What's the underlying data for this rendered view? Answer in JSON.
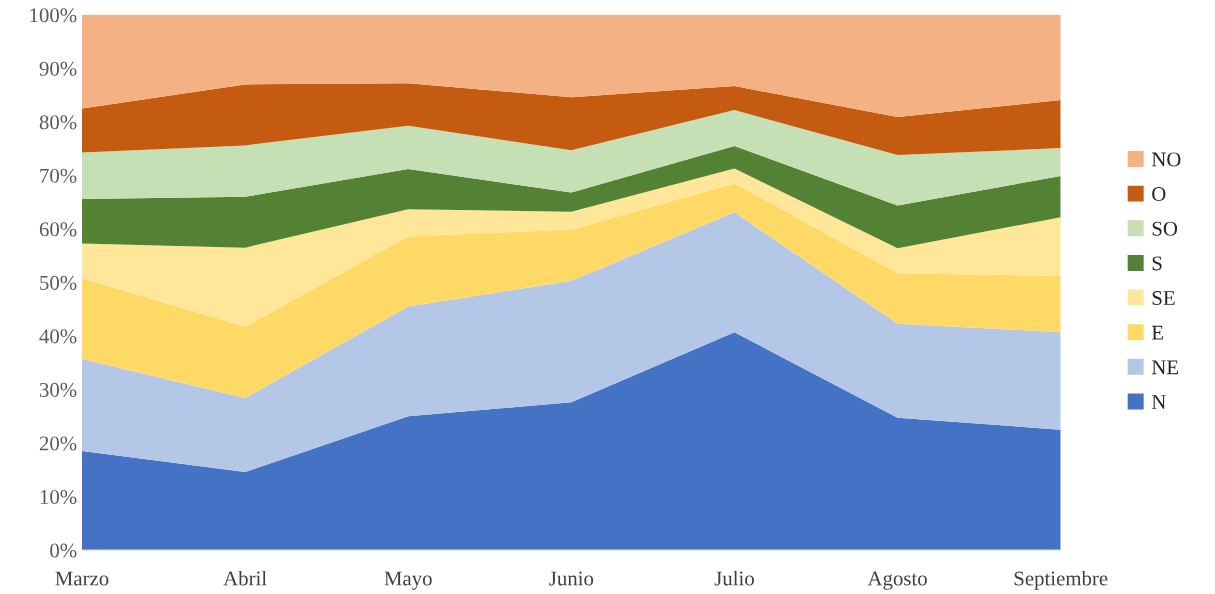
{
  "chart_data": {
    "type": "area",
    "stacked": true,
    "categories": [
      "Marzo",
      "Abril",
      "Mayo",
      "Junio",
      "Julio",
      "Agosto",
      "Septiembre"
    ],
    "series": [
      {
        "name": "N",
        "color": "#4472c4",
        "values": [
          18.5,
          14.6,
          25.0,
          27.6,
          40.7,
          24.7,
          22.5
        ]
      },
      {
        "name": "NE",
        "color": "#b4c7e7",
        "values": [
          17.2,
          13.8,
          20.5,
          22.7,
          22.4,
          17.6,
          18.2
        ]
      },
      {
        "name": "E",
        "color": "#ffd966",
        "values": [
          15.1,
          13.3,
          13.1,
          9.6,
          5.4,
          9.4,
          10.5
        ]
      },
      {
        "name": "SE",
        "color": "#ffe699",
        "values": [
          6.5,
          14.8,
          5.1,
          3.3,
          2.8,
          4.7,
          11.0
        ]
      },
      {
        "name": "S",
        "color": "#548235",
        "values": [
          8.3,
          9.5,
          7.5,
          3.6,
          4.2,
          8.0,
          7.7
        ]
      },
      {
        "name": "SO",
        "color": "#c5e0b4",
        "values": [
          8.7,
          9.6,
          8.1,
          7.9,
          6.7,
          9.4,
          5.2
        ]
      },
      {
        "name": "O",
        "color": "#c55a11",
        "values": [
          8.2,
          11.4,
          7.9,
          9.9,
          4.5,
          7.1,
          9.0
        ]
      },
      {
        "name": "NO",
        "color": "#f4b183",
        "values": [
          17.5,
          13.0,
          12.8,
          15.4,
          13.3,
          19.1,
          15.9
        ]
      }
    ],
    "ylim": [
      0,
      100
    ],
    "yticks": [
      {
        "value": 0,
        "label": "0%"
      },
      {
        "value": 10,
        "label": "10%"
      },
      {
        "value": 20,
        "label": "20%"
      },
      {
        "value": 30,
        "label": "30%"
      },
      {
        "value": 40,
        "label": "40%"
      },
      {
        "value": 50,
        "label": "50%"
      },
      {
        "value": 60,
        "label": "60%"
      },
      {
        "value": 70,
        "label": "70%"
      },
      {
        "value": 80,
        "label": "80%"
      },
      {
        "value": 90,
        "label": "90%"
      },
      {
        "value": 100,
        "label": "100%"
      }
    ],
    "grid": false,
    "legend": "right"
  }
}
